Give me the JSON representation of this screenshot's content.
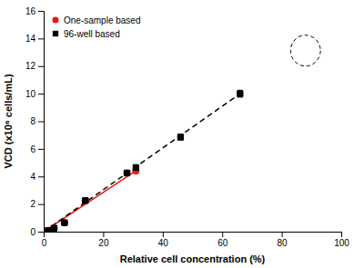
{
  "chart_data": {
    "type": "scatter",
    "xlabel": "Relative cell concentration (%)",
    "ylabel": "VCD (x10⁶ cells/mL)",
    "xlim": [
      0,
      100
    ],
    "ylim": [
      0,
      16
    ],
    "xticks": [
      0,
      20,
      40,
      60,
      80,
      100
    ],
    "yticks": [
      0,
      2,
      4,
      6,
      8,
      10,
      12,
      14,
      16
    ],
    "legend": "top-left",
    "series": [
      {
        "name": "One-sample based",
        "color": "#e8191a",
        "marker": "circle",
        "x": [
          1.5,
          3.5,
          7,
          14,
          28,
          31
        ],
        "values": [
          0.08,
          0.25,
          0.65,
          2.25,
          4.25,
          4.4
        ],
        "errors": [
          0.05,
          0.08,
          0.1,
          0.12,
          0.15,
          0.15
        ]
      },
      {
        "name": "96-well based",
        "color": "#000000",
        "marker": "square",
        "x": [
          1.5,
          3.5,
          7,
          14,
          28,
          31,
          46,
          66
        ],
        "values": [
          0.08,
          0.25,
          0.65,
          2.25,
          4.25,
          4.65,
          6.85,
          10.0
        ],
        "errors": [
          0.05,
          0.08,
          0.1,
          0.12,
          0.15,
          0.15,
          0.2,
          0.25
        ]
      }
    ],
    "fit_lines": [
      {
        "color": "#e8191a",
        "line_style": "solid",
        "x": [
          0,
          32
        ],
        "values": [
          0,
          4.55
        ]
      },
      {
        "color": "#000000",
        "line_style": "dashed",
        "x": [
          0,
          66
        ],
        "values": [
          0,
          10.0
        ]
      }
    ]
  }
}
